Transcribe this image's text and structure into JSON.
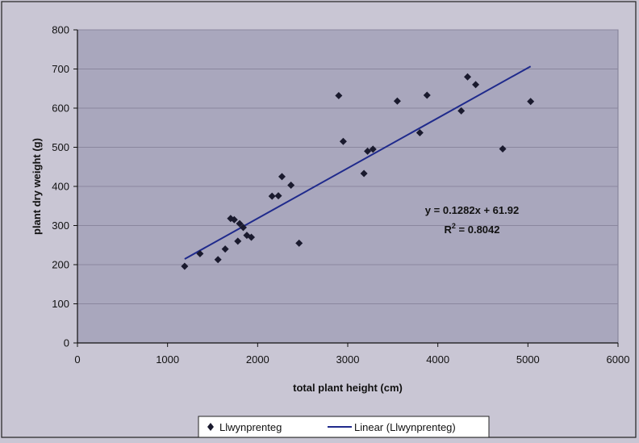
{
  "chart_data": {
    "type": "scatter",
    "xlabel": "total plant height (cm)",
    "ylabel": "plant dry weight (g)",
    "xlim": [
      0,
      6000
    ],
    "ylim": [
      0,
      800
    ],
    "x_ticks": [
      "0",
      "1000",
      "2000",
      "3000",
      "4000",
      "5000",
      "6000"
    ],
    "y_ticks": [
      "0",
      "100",
      "200",
      "300",
      "400",
      "500",
      "600",
      "700",
      "800"
    ],
    "grid": "horizontal",
    "legend_position": "bottom",
    "series": [
      {
        "name": "Llwynprenteg",
        "marker": "diamond",
        "color": "#1a1a2e",
        "x": [
          1190,
          1360,
          1560,
          1640,
          1700,
          1740,
          1780,
          1800,
          1840,
          1880,
          1930,
          2160,
          2230,
          2270,
          2370,
          2460,
          2900,
          2950,
          3180,
          3220,
          3280,
          3550,
          3800,
          3880,
          4260,
          4330,
          4420,
          4720,
          5030
        ],
        "y": [
          196,
          228,
          213,
          240,
          318,
          315,
          260,
          305,
          295,
          275,
          270,
          375,
          376,
          425,
          403,
          255,
          632,
          515,
          433,
          490,
          495,
          618,
          537,
          633,
          593,
          680,
          660,
          496,
          617
        ]
      }
    ],
    "trendline": {
      "name": "Linear (Llwynprenteg)",
      "color": "#1f2a8c",
      "slope": 0.1282,
      "intercept": 61.92,
      "x_range": [
        1190,
        5030
      ]
    },
    "annotations": {
      "equation": "y = 0.1282x + 61.92",
      "r2_prefix": "R",
      "r2_sup": "2",
      "r2_suffix": " = 0.8042"
    },
    "colors": {
      "page_background": "#c9c6d4",
      "plot_background": "#a9a7bd",
      "grid": "#8a879e",
      "axis": "#111111"
    }
  }
}
